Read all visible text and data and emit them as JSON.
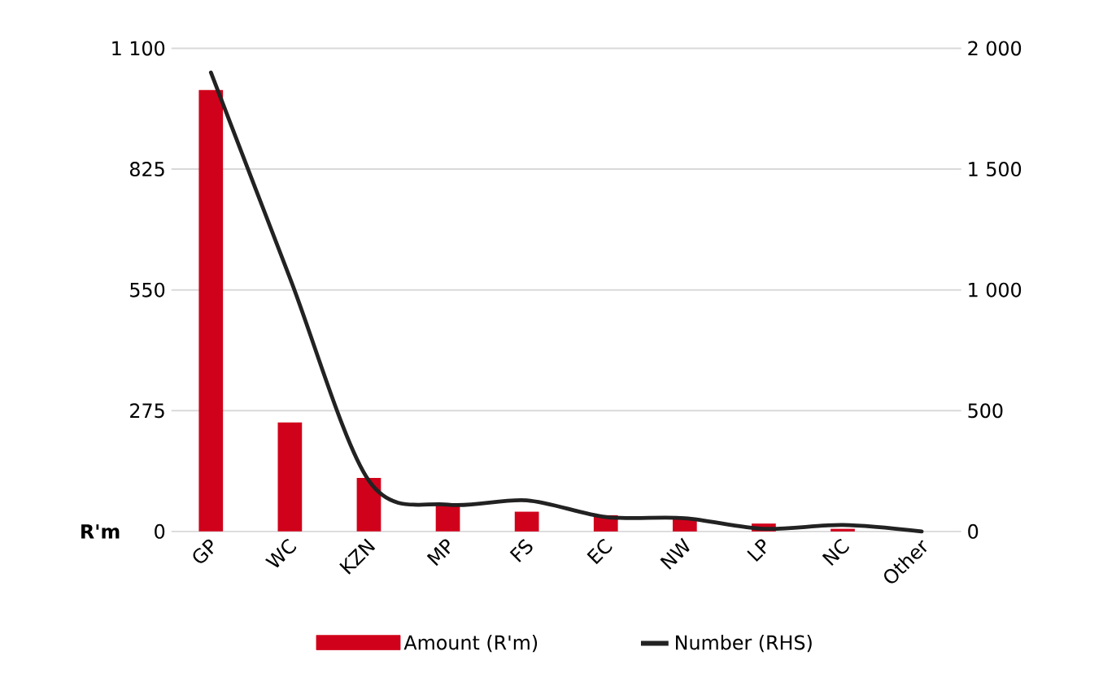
{
  "chart_data": {
    "type": "bar",
    "categories": [
      "GP",
      "WC",
      "KZN",
      "MP",
      "FS",
      "EC",
      "NW",
      "LP",
      "NC",
      "Other"
    ],
    "series": [
      {
        "name": "Amount (R'm)",
        "color": "#d0021b",
        "values": [
          1005,
          248,
          122,
          62,
          45,
          37,
          30,
          18,
          6,
          null
        ]
      },
      {
        "name": "Number (RHS)",
        "type": "line",
        "axis": "y2",
        "color": "#222222",
        "values": [
          1900,
          1050,
          210,
          111,
          129,
          60,
          55,
          11,
          27,
          0
        ]
      }
    ],
    "ylabel": "R'm",
    "ylim": [
      0,
      1100
    ],
    "yticks": [
      0,
      275,
      550,
      825,
      {
        "value": 1100,
        "label": "1 100"
      }
    ],
    "y2lim": [
      0,
      2000
    ],
    "y2ticks": [
      0,
      500,
      {
        "value": 1000,
        "label": "1 000"
      },
      {
        "value": 1500,
        "label": "1 500"
      },
      {
        "value": 2000,
        "label": "2 000"
      }
    ],
    "grid": "y",
    "legend": "bottom"
  }
}
